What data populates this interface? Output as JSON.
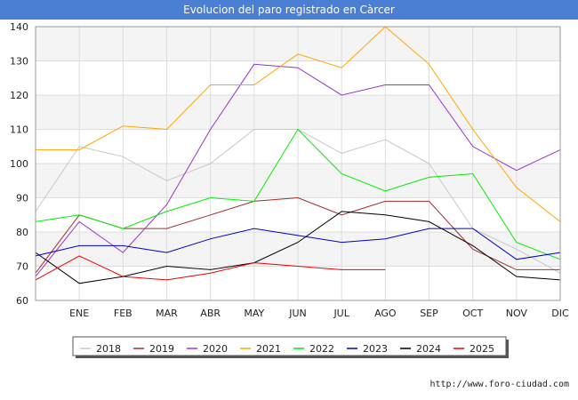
{
  "chart_data": {
    "type": "line",
    "title": "Evolucion del paro registrado en Càrcer",
    "categories": [
      "",
      "ENE",
      "FEB",
      "MAR",
      "ABR",
      "MAY",
      "JUN",
      "JUL",
      "AGO",
      "SEP",
      "OCT",
      "NOV",
      "DIC"
    ],
    "ylim": [
      60,
      140
    ],
    "yticks": [
      60,
      70,
      80,
      90,
      100,
      110,
      120,
      130,
      140
    ],
    "grid": true,
    "legend_position": "bottom",
    "series": [
      {
        "name": "2018",
        "color": "#c8c8c8",
        "values": [
          86,
          105,
          102,
          95,
          100,
          110,
          110,
          103,
          107,
          100,
          81,
          75,
          68
        ]
      },
      {
        "name": "2019",
        "color": "#a52a2a",
        "values": [
          68,
          85,
          81,
          81,
          85,
          89,
          90,
          85,
          89,
          89,
          75,
          69,
          69
        ]
      },
      {
        "name": "2020",
        "color": "#9a32cd",
        "values": [
          67,
          83,
          74,
          88,
          110,
          129,
          128,
          120,
          123,
          123,
          105,
          98,
          104
        ]
      },
      {
        "name": "2021",
        "color": "#ffa500",
        "values": [
          104,
          104,
          111,
          110,
          123,
          123,
          132,
          128,
          140,
          129,
          110,
          93,
          83
        ]
      },
      {
        "name": "2022",
        "color": "#00ee00",
        "values": [
          83,
          85,
          81,
          86,
          90,
          89,
          110,
          97,
          92,
          96,
          97,
          77,
          72
        ]
      },
      {
        "name": "2023",
        "color": "#0000cd",
        "values": [
          73,
          76,
          76,
          74,
          78,
          81,
          79,
          77,
          78,
          81,
          81,
          72,
          74
        ]
      },
      {
        "name": "2024",
        "color": "#000000",
        "values": [
          74,
          65,
          67,
          70,
          69,
          71,
          77,
          86,
          85,
          83,
          76,
          67,
          66
        ]
      },
      {
        "name": "2025",
        "color": "#ee0000",
        "values": [
          66,
          73,
          67,
          66,
          68,
          71,
          70,
          69,
          69,
          null,
          null,
          null,
          null
        ]
      }
    ]
  },
  "footer": {
    "source": "http://www.foro-ciudad.com"
  }
}
